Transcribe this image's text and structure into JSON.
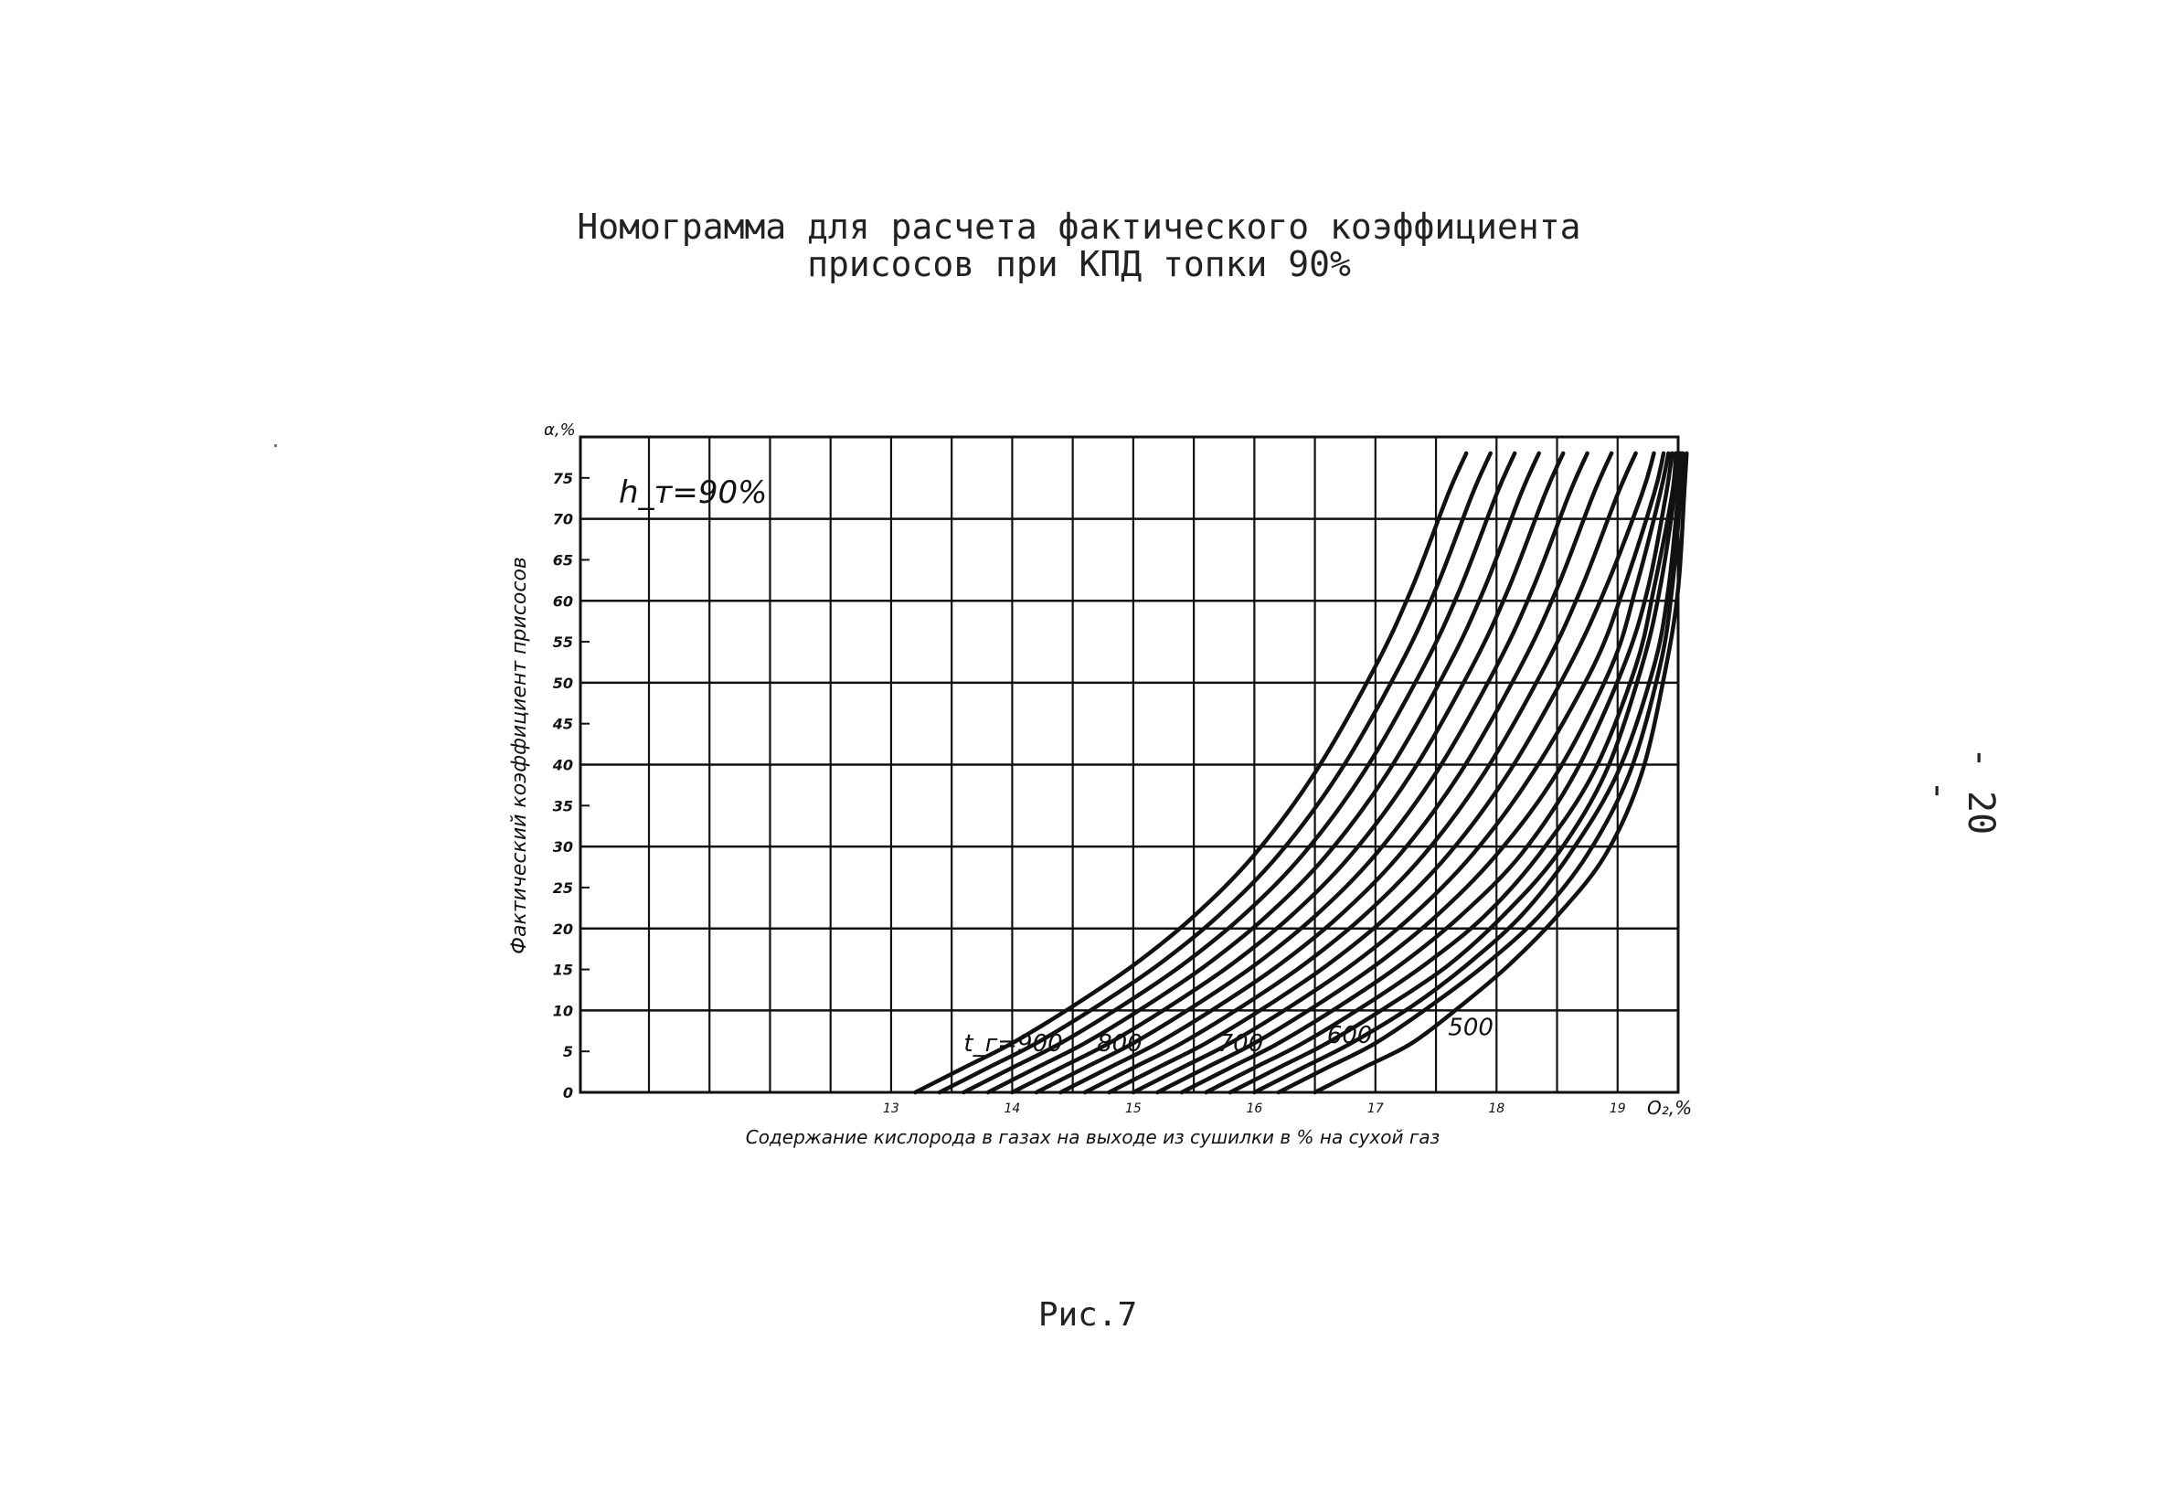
{
  "page": {
    "title_line1": "Номограмма для расчета фактического коэффициента",
    "title_line2": "присосов при КПД топки 90%",
    "page_number": "- 20 -",
    "caption": "Рис.7"
  },
  "chart_data": {
    "type": "line",
    "annotation": "h_т=90%",
    "ylabel": "Фактический коэффициент присосов",
    "xlabel": "Содержание кислорода в газах на выходе из сушилки в % на сухой газ",
    "y_unit_label": "α,%",
    "x_unit_label": "O₂,%",
    "xlim": [
      11,
      19.5
    ],
    "ylim": [
      0,
      80
    ],
    "x_ticks": [
      {
        "value": 11,
        "label": ""
      },
      {
        "value": 13,
        "label": "13"
      },
      {
        "value": 14,
        "label": "14"
      },
      {
        "value": 15,
        "label": "15"
      },
      {
        "value": 16,
        "label": "16"
      },
      {
        "value": 17,
        "label": "17"
      },
      {
        "value": 18,
        "label": "18"
      },
      {
        "value": 19,
        "label": "19"
      }
    ],
    "x_gridlines": [
      11.5,
      12,
      12.5,
      13,
      13.5,
      14,
      14.5,
      15,
      15.5,
      16,
      16.5,
      17,
      17.5,
      18,
      18.5,
      19
    ],
    "y_ticks": [
      {
        "value": 0,
        "label": "0"
      },
      {
        "value": 5,
        "label": "5"
      },
      {
        "value": 10,
        "label": "10"
      },
      {
        "value": 15,
        "label": "15"
      },
      {
        "value": 20,
        "label": "20"
      },
      {
        "value": 25,
        "label": "25"
      },
      {
        "value": 30,
        "label": "30"
      },
      {
        "value": 35,
        "label": "35"
      },
      {
        "value": 40,
        "label": "40"
      },
      {
        "value": 45,
        "label": "45"
      },
      {
        "value": 50,
        "label": "50"
      },
      {
        "value": 55,
        "label": "55"
      },
      {
        "value": 60,
        "label": "60"
      },
      {
        "value": 65,
        "label": "65"
      },
      {
        "value": 70,
        "label": "70"
      },
      {
        "value": 75,
        "label": "75"
      }
    ],
    "y_gridlines_major": [
      10,
      20,
      30,
      40,
      50,
      60,
      70
    ],
    "y_gridlines_minor": [
      5,
      15,
      25,
      35,
      45,
      55,
      65,
      75
    ],
    "grid": true,
    "series": [
      {
        "name": "900",
        "points": [
          [
            13.2,
            0
          ],
          [
            13.6,
            3
          ],
          [
            14,
            6
          ],
          [
            14.5,
            10.5
          ],
          [
            15,
            15.5
          ],
          [
            15.5,
            21.5
          ],
          [
            16,
            29
          ],
          [
            16.5,
            39
          ],
          [
            17,
            52
          ],
          [
            17.3,
            61.5
          ],
          [
            17.6,
            73
          ],
          [
            17.75,
            78
          ]
        ]
      },
      {
        "name": "",
        "points": [
          [
            13.4,
            0
          ],
          [
            13.8,
            3
          ],
          [
            14.2,
            6
          ],
          [
            14.7,
            10.5
          ],
          [
            15.2,
            15.5
          ],
          [
            15.7,
            21.5
          ],
          [
            16.2,
            29
          ],
          [
            16.7,
            39
          ],
          [
            17.2,
            52
          ],
          [
            17.5,
            61.5
          ],
          [
            17.8,
            73
          ],
          [
            17.95,
            78
          ]
        ]
      },
      {
        "name": "",
        "points": [
          [
            13.6,
            0
          ],
          [
            14,
            3
          ],
          [
            14.4,
            6
          ],
          [
            14.9,
            10.5
          ],
          [
            15.4,
            15.5
          ],
          [
            15.9,
            21.5
          ],
          [
            16.4,
            29
          ],
          [
            16.9,
            39
          ],
          [
            17.4,
            52
          ],
          [
            17.7,
            61.5
          ],
          [
            18,
            73
          ],
          [
            18.15,
            78
          ]
        ]
      },
      {
        "name": "",
        "points": [
          [
            13.8,
            0
          ],
          [
            14.2,
            3
          ],
          [
            14.6,
            6
          ],
          [
            15.1,
            10.5
          ],
          [
            15.6,
            15.5
          ],
          [
            16.1,
            21.5
          ],
          [
            16.6,
            29
          ],
          [
            17.1,
            39
          ],
          [
            17.6,
            52
          ],
          [
            17.9,
            61.5
          ],
          [
            18.2,
            73
          ],
          [
            18.35,
            78
          ]
        ]
      },
      {
        "name": "800",
        "points": [
          [
            14,
            0
          ],
          [
            14.4,
            3
          ],
          [
            14.8,
            6
          ],
          [
            15.3,
            10.5
          ],
          [
            15.8,
            15.5
          ],
          [
            16.3,
            21.5
          ],
          [
            16.8,
            29
          ],
          [
            17.3,
            39
          ],
          [
            17.8,
            52
          ],
          [
            18.1,
            61.5
          ],
          [
            18.4,
            73
          ],
          [
            18.55,
            78
          ]
        ]
      },
      {
        "name": "",
        "points": [
          [
            14.2,
            0
          ],
          [
            14.6,
            3
          ],
          [
            15,
            6
          ],
          [
            15.5,
            10.5
          ],
          [
            16,
            15.5
          ],
          [
            16.5,
            21.5
          ],
          [
            17,
            29
          ],
          [
            17.5,
            39
          ],
          [
            18,
            52
          ],
          [
            18.3,
            61.5
          ],
          [
            18.6,
            73
          ],
          [
            18.75,
            78
          ]
        ]
      },
      {
        "name": "",
        "points": [
          [
            14.4,
            0
          ],
          [
            14.8,
            3
          ],
          [
            15.2,
            6
          ],
          [
            15.7,
            10.5
          ],
          [
            16.2,
            15.5
          ],
          [
            16.7,
            21.5
          ],
          [
            17.2,
            29
          ],
          [
            17.7,
            39
          ],
          [
            18.2,
            52
          ],
          [
            18.5,
            61.5
          ],
          [
            18.8,
            73
          ],
          [
            18.95,
            78
          ]
        ]
      },
      {
        "name": "",
        "points": [
          [
            14.6,
            0
          ],
          [
            15,
            3
          ],
          [
            15.4,
            6
          ],
          [
            15.9,
            10.5
          ],
          [
            16.4,
            15.5
          ],
          [
            16.9,
            21.5
          ],
          [
            17.4,
            29
          ],
          [
            17.9,
            39
          ],
          [
            18.4,
            52
          ],
          [
            18.7,
            61.5
          ],
          [
            19,
            73
          ],
          [
            19.15,
            78
          ]
        ]
      },
      {
        "name": "700",
        "points": [
          [
            14.8,
            0
          ],
          [
            15.2,
            3
          ],
          [
            15.6,
            6
          ],
          [
            16.1,
            10.5
          ],
          [
            16.6,
            15.5
          ],
          [
            17.1,
            21.5
          ],
          [
            17.6,
            29
          ],
          [
            18.1,
            39
          ],
          [
            18.6,
            52
          ],
          [
            18.9,
            61.5
          ],
          [
            19.2,
            73
          ],
          [
            19.3,
            78
          ]
        ]
      },
      {
        "name": "",
        "points": [
          [
            15,
            0
          ],
          [
            15.4,
            3
          ],
          [
            15.8,
            6
          ],
          [
            16.3,
            10.5
          ],
          [
            16.8,
            15.5
          ],
          [
            17.3,
            21.5
          ],
          [
            17.8,
            29
          ],
          [
            18.3,
            39
          ],
          [
            18.8,
            52
          ],
          [
            19.05,
            61.5
          ],
          [
            19.3,
            73
          ],
          [
            19.38,
            78
          ]
        ]
      },
      {
        "name": "",
        "points": [
          [
            15.2,
            0
          ],
          [
            15.6,
            3
          ],
          [
            16,
            6
          ],
          [
            16.5,
            10.5
          ],
          [
            17,
            15.5
          ],
          [
            17.5,
            21.5
          ],
          [
            18,
            29
          ],
          [
            18.5,
            39
          ],
          [
            18.95,
            52
          ],
          [
            19.15,
            61.5
          ],
          [
            19.35,
            73
          ],
          [
            19.42,
            78
          ]
        ]
      },
      {
        "name": "",
        "points": [
          [
            15.4,
            0
          ],
          [
            15.8,
            3
          ],
          [
            16.2,
            6
          ],
          [
            16.7,
            10.5
          ],
          [
            17.2,
            15.5
          ],
          [
            17.7,
            21.5
          ],
          [
            18.2,
            29
          ],
          [
            18.65,
            39
          ],
          [
            19.05,
            52
          ],
          [
            19.25,
            61.5
          ],
          [
            19.4,
            73
          ],
          [
            19.45,
            78
          ]
        ]
      },
      {
        "name": "600",
        "points": [
          [
            15.6,
            0
          ],
          [
            16,
            3
          ],
          [
            16.4,
            6
          ],
          [
            16.9,
            10.5
          ],
          [
            17.4,
            15.5
          ],
          [
            17.9,
            21.5
          ],
          [
            18.35,
            29
          ],
          [
            18.8,
            39
          ],
          [
            19.15,
            52
          ],
          [
            19.3,
            61.5
          ],
          [
            19.45,
            73
          ],
          [
            19.48,
            78
          ]
        ]
      },
      {
        "name": "",
        "points": [
          [
            15.8,
            0
          ],
          [
            16.2,
            3
          ],
          [
            16.6,
            6
          ],
          [
            17.1,
            10.5
          ],
          [
            17.6,
            15.5
          ],
          [
            18.05,
            21.5
          ],
          [
            18.5,
            29
          ],
          [
            18.9,
            39
          ],
          [
            19.2,
            52
          ],
          [
            19.35,
            61.5
          ],
          [
            19.47,
            73
          ],
          [
            19.5,
            78
          ]
        ]
      },
      {
        "name": "",
        "points": [
          [
            16,
            0
          ],
          [
            16.4,
            3
          ],
          [
            16.8,
            6
          ],
          [
            17.3,
            10.5
          ],
          [
            17.75,
            15.5
          ],
          [
            18.2,
            21.5
          ],
          [
            18.6,
            29
          ],
          [
            19,
            39
          ],
          [
            19.3,
            52
          ],
          [
            19.42,
            61.5
          ],
          [
            19.5,
            73
          ],
          [
            19.52,
            78
          ]
        ]
      },
      {
        "name": "",
        "points": [
          [
            16.2,
            0
          ],
          [
            16.6,
            3
          ],
          [
            17,
            6
          ],
          [
            17.45,
            10.5
          ],
          [
            17.9,
            15.5
          ],
          [
            18.35,
            21.5
          ],
          [
            18.75,
            29
          ],
          [
            19.1,
            39
          ],
          [
            19.35,
            52
          ],
          [
            19.45,
            61.5
          ],
          [
            19.52,
            73
          ],
          [
            19.54,
            78
          ]
        ]
      },
      {
        "name": "500",
        "points": [
          [
            16.5,
            0
          ],
          [
            16.9,
            3
          ],
          [
            17.3,
            6
          ],
          [
            17.7,
            10.5
          ],
          [
            18.1,
            15.5
          ],
          [
            18.5,
            21.5
          ],
          [
            18.9,
            29
          ],
          [
            19.2,
            39
          ],
          [
            19.4,
            52
          ],
          [
            19.5,
            61.5
          ],
          [
            19.55,
            73
          ],
          [
            19.57,
            78
          ]
        ]
      }
    ],
    "curve_labels": [
      {
        "text": "t_г=900",
        "x": 13.6,
        "y": 5
      },
      {
        "text": "800",
        "x": 14.7,
        "y": 5
      },
      {
        "text": "700",
        "x": 15.7,
        "y": 5
      },
      {
        "text": "600",
        "x": 16.6,
        "y": 6
      },
      {
        "text": "500",
        "x": 17.6,
        "y": 7
      }
    ]
  }
}
